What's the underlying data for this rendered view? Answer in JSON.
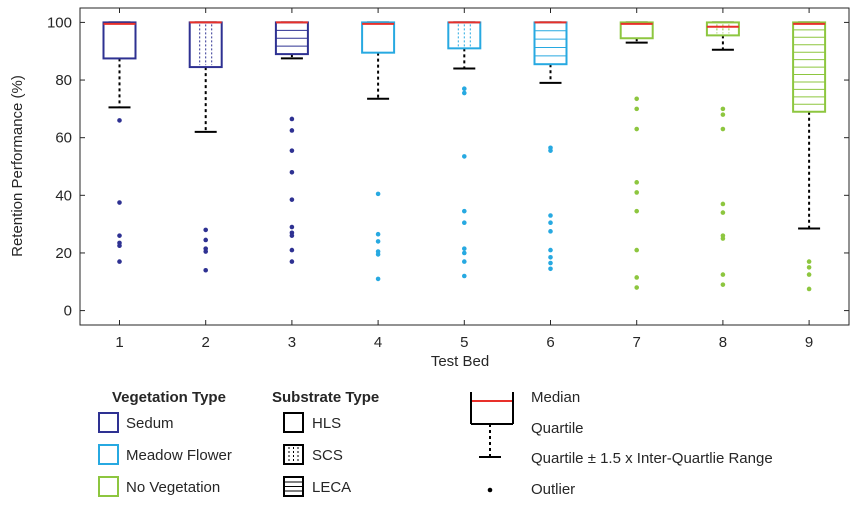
{
  "chart_data": {
    "type": "boxplot",
    "title": "",
    "xlabel": "Test Bed",
    "ylabel": "Retention Performance (%)",
    "ylim": [
      -5,
      105
    ],
    "yticks": [
      0,
      20,
      40,
      60,
      80,
      100
    ],
    "categories": [
      "1",
      "2",
      "3",
      "4",
      "5",
      "6",
      "7",
      "8",
      "9"
    ],
    "colors": {
      "sedum": "#2e3192",
      "meadow": "#27a9e1",
      "novege": "#8dc63f",
      "median": "#e8302a",
      "whisker": "#000000"
    },
    "boxes": [
      {
        "bed": "1",
        "vegetation": "sedum",
        "substrate": "HLS",
        "median": 99.5,
        "q1": 87.5,
        "q3": 100,
        "whisker_low": 70.5,
        "whisker_high": 100,
        "outliers": [
          66,
          37.5,
          26,
          23.5,
          22.5,
          17
        ]
      },
      {
        "bed": "2",
        "vegetation": "sedum",
        "substrate": "SCS",
        "median": 100,
        "q1": 84.5,
        "q3": 100,
        "whisker_low": 62,
        "whisker_high": 100,
        "outliers": [
          28,
          24.5,
          21.5,
          20.5,
          14
        ]
      },
      {
        "bed": "3",
        "vegetation": "sedum",
        "substrate": "LECA",
        "median": 100,
        "q1": 89,
        "q3": 100,
        "whisker_low": 87.5,
        "whisker_high": 100,
        "outliers": [
          66.5,
          62.5,
          55.5,
          48,
          38.5,
          29,
          27,
          26,
          21,
          17
        ]
      },
      {
        "bed": "4",
        "vegetation": "meadow",
        "substrate": "HLS",
        "median": 99.5,
        "q1": 89.5,
        "q3": 100,
        "whisker_low": 73.5,
        "whisker_high": 100,
        "outliers": [
          40.5,
          26.5,
          24,
          20.5,
          19.5,
          11
        ]
      },
      {
        "bed": "5",
        "vegetation": "meadow",
        "substrate": "SCS",
        "median": 100,
        "q1": 91,
        "q3": 100,
        "whisker_low": 84,
        "whisker_high": 100,
        "outliers": [
          77,
          75.5,
          53.5,
          34.5,
          30.5,
          21.5,
          20,
          17,
          12
        ]
      },
      {
        "bed": "6",
        "vegetation": "meadow",
        "substrate": "LECA",
        "median": 100,
        "q1": 85.5,
        "q3": 100,
        "whisker_low": 79,
        "whisker_high": 100,
        "outliers": [
          56.5,
          55.5,
          33,
          30.5,
          27.5,
          21,
          18.5,
          16.5,
          14.5
        ]
      },
      {
        "bed": "7",
        "vegetation": "novege",
        "substrate": "HLS",
        "median": 99.5,
        "q1": 94.5,
        "q3": 100,
        "whisker_low": 93,
        "whisker_high": 100,
        "outliers": [
          73.5,
          70,
          63,
          44.5,
          41,
          34.5,
          21,
          11.5,
          8
        ]
      },
      {
        "bed": "8",
        "vegetation": "novege",
        "substrate": "SCS",
        "median": 98.5,
        "q1": 95.5,
        "q3": 100,
        "whisker_low": 90.5,
        "whisker_high": 100,
        "outliers": [
          70,
          68,
          63,
          37,
          34,
          26,
          25,
          12.5,
          9
        ]
      },
      {
        "bed": "9",
        "vegetation": "novege",
        "substrate": "LECA",
        "median": 99.5,
        "q1": 69,
        "q3": 100,
        "whisker_low": 28.5,
        "whisker_high": 100,
        "outliers": [
          17,
          15,
          12.5,
          7.5
        ]
      }
    ]
  },
  "legend": {
    "vegetation_title": "Vegetation Type",
    "vegetation": [
      {
        "label": "Sedum",
        "color": "#2e3192"
      },
      {
        "label": "Meadow Flower",
        "color": "#27a9e1"
      },
      {
        "label": "No Vegetation",
        "color": "#8dc63f"
      }
    ],
    "substrate_title": "Substrate Type",
    "substrate": [
      {
        "label": "HLS",
        "pattern": "solid"
      },
      {
        "label": "SCS",
        "pattern": "dotted"
      },
      {
        "label": "LECA",
        "pattern": "hatched"
      }
    ],
    "stats": {
      "median": "Median",
      "quartile": "Quartile",
      "whisker": "Quartile ± 1.5 x Inter-Quartlie Range",
      "outlier": "Outlier"
    }
  }
}
